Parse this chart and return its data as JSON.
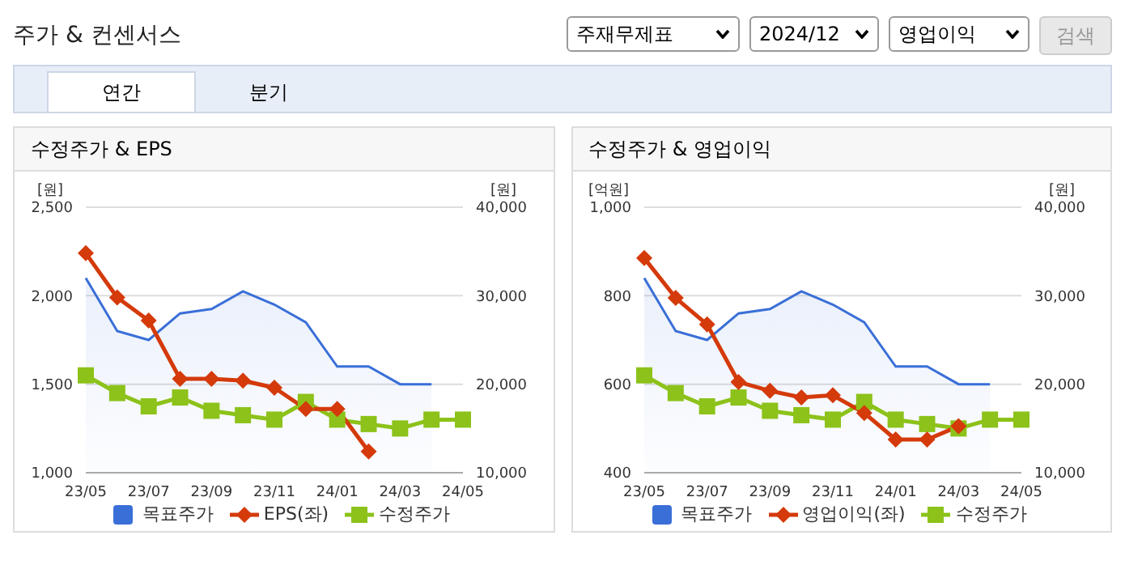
{
  "chart_data": [
    {
      "type": "other",
      "title": "주가 & 컨센서스",
      "annotations": [
        "주재무제표",
        "2024/12",
        "영업이익",
        "검색",
        "연간",
        "분기"
      ]
    },
    {
      "type": "line",
      "title": "수정주가 & EPS",
      "ylabel": "[원]",
      "y2label": "[원]",
      "categories": [
        "23/05",
        null,
        "23/07",
        null,
        "23/09",
        null,
        "23/11",
        null,
        "24/01",
        null,
        "24/03",
        null,
        "24/05"
      ],
      "ylim": [
        1000,
        2500
      ],
      "yticks": [
        {
          "value": 1000,
          "label": "1,000"
        },
        {
          "value": 1500,
          "label": "1,500"
        },
        {
          "value": 2000,
          "label": "2,000"
        },
        {
          "value": 2500,
          "label": "2,500"
        }
      ],
      "y2lim": [
        10000,
        40000
      ],
      "y2ticks": [
        {
          "value": 10000,
          "label": "10,000"
        },
        {
          "value": 20000,
          "label": "20,000"
        },
        {
          "value": 30000,
          "label": "30,000"
        },
        {
          "value": 40000,
          "label": "40,000"
        }
      ],
      "grid": "y",
      "legend": "bottom",
      "series": [
        {
          "name": "목표주가",
          "type": "area",
          "axis": "y2",
          "color": "#3a6fd8",
          "marker": "none",
          "values": [
            32000,
            26000,
            25000,
            28000,
            28500,
            30500,
            29000,
            27000,
            22000,
            22000,
            20000,
            20000,
            null
          ]
        },
        {
          "name": "EPS(좌)",
          "type": "line",
          "axis": "y",
          "color": "#d43a0a",
          "marker": "diamond",
          "values": [
            2240,
            1990,
            1860,
            1530,
            1530,
            1520,
            1480,
            1360,
            1360,
            1120,
            null,
            null,
            null
          ]
        },
        {
          "name": "수정주가",
          "type": "line",
          "axis": "y2",
          "color": "#8cc21a",
          "marker": "square",
          "values": [
            21000,
            19000,
            17500,
            18500,
            17000,
            16500,
            16000,
            18000,
            16000,
            15500,
            15000,
            16000,
            16000
          ]
        }
      ]
    },
    {
      "type": "line",
      "title": "수정주가 & 영업이익",
      "ylabel": "[억원]",
      "y2label": "[원]",
      "categories": [
        "23/05",
        null,
        "23/07",
        null,
        "23/09",
        null,
        "23/11",
        null,
        "24/01",
        null,
        "24/03",
        null,
        "24/05"
      ],
      "ylim": [
        400,
        1000
      ],
      "yticks": [
        400,
        600,
        800,
        {
          "value": 1000,
          "label": "1,000"
        }
      ],
      "y2lim": [
        10000,
        40000
      ],
      "y2ticks": [
        {
          "value": 10000,
          "label": "10,000"
        },
        {
          "value": 20000,
          "label": "20,000"
        },
        {
          "value": 30000,
          "label": "30,000"
        },
        {
          "value": 40000,
          "label": "40,000"
        }
      ],
      "grid": "y",
      "legend": "bottom",
      "series": [
        {
          "name": "목표주가",
          "type": "area",
          "axis": "y2",
          "color": "#3a6fd8",
          "marker": "none",
          "values": [
            32000,
            26000,
            25000,
            28000,
            28500,
            30500,
            29000,
            27000,
            22000,
            22000,
            20000,
            20000,
            null
          ]
        },
        {
          "name": "영업이익(좌)",
          "type": "line",
          "axis": "y",
          "color": "#d43a0a",
          "marker": "diamond",
          "values": [
            885,
            795,
            735,
            605,
            585,
            570,
            575,
            535,
            475,
            475,
            505,
            null,
            null
          ]
        },
        {
          "name": "수정주가",
          "type": "line",
          "axis": "y2",
          "color": "#8cc21a",
          "marker": "square",
          "values": [
            21000,
            19000,
            17500,
            18500,
            17000,
            16500,
            16000,
            18000,
            16000,
            15500,
            15000,
            16000,
            16000
          ]
        }
      ]
    }
  ]
}
